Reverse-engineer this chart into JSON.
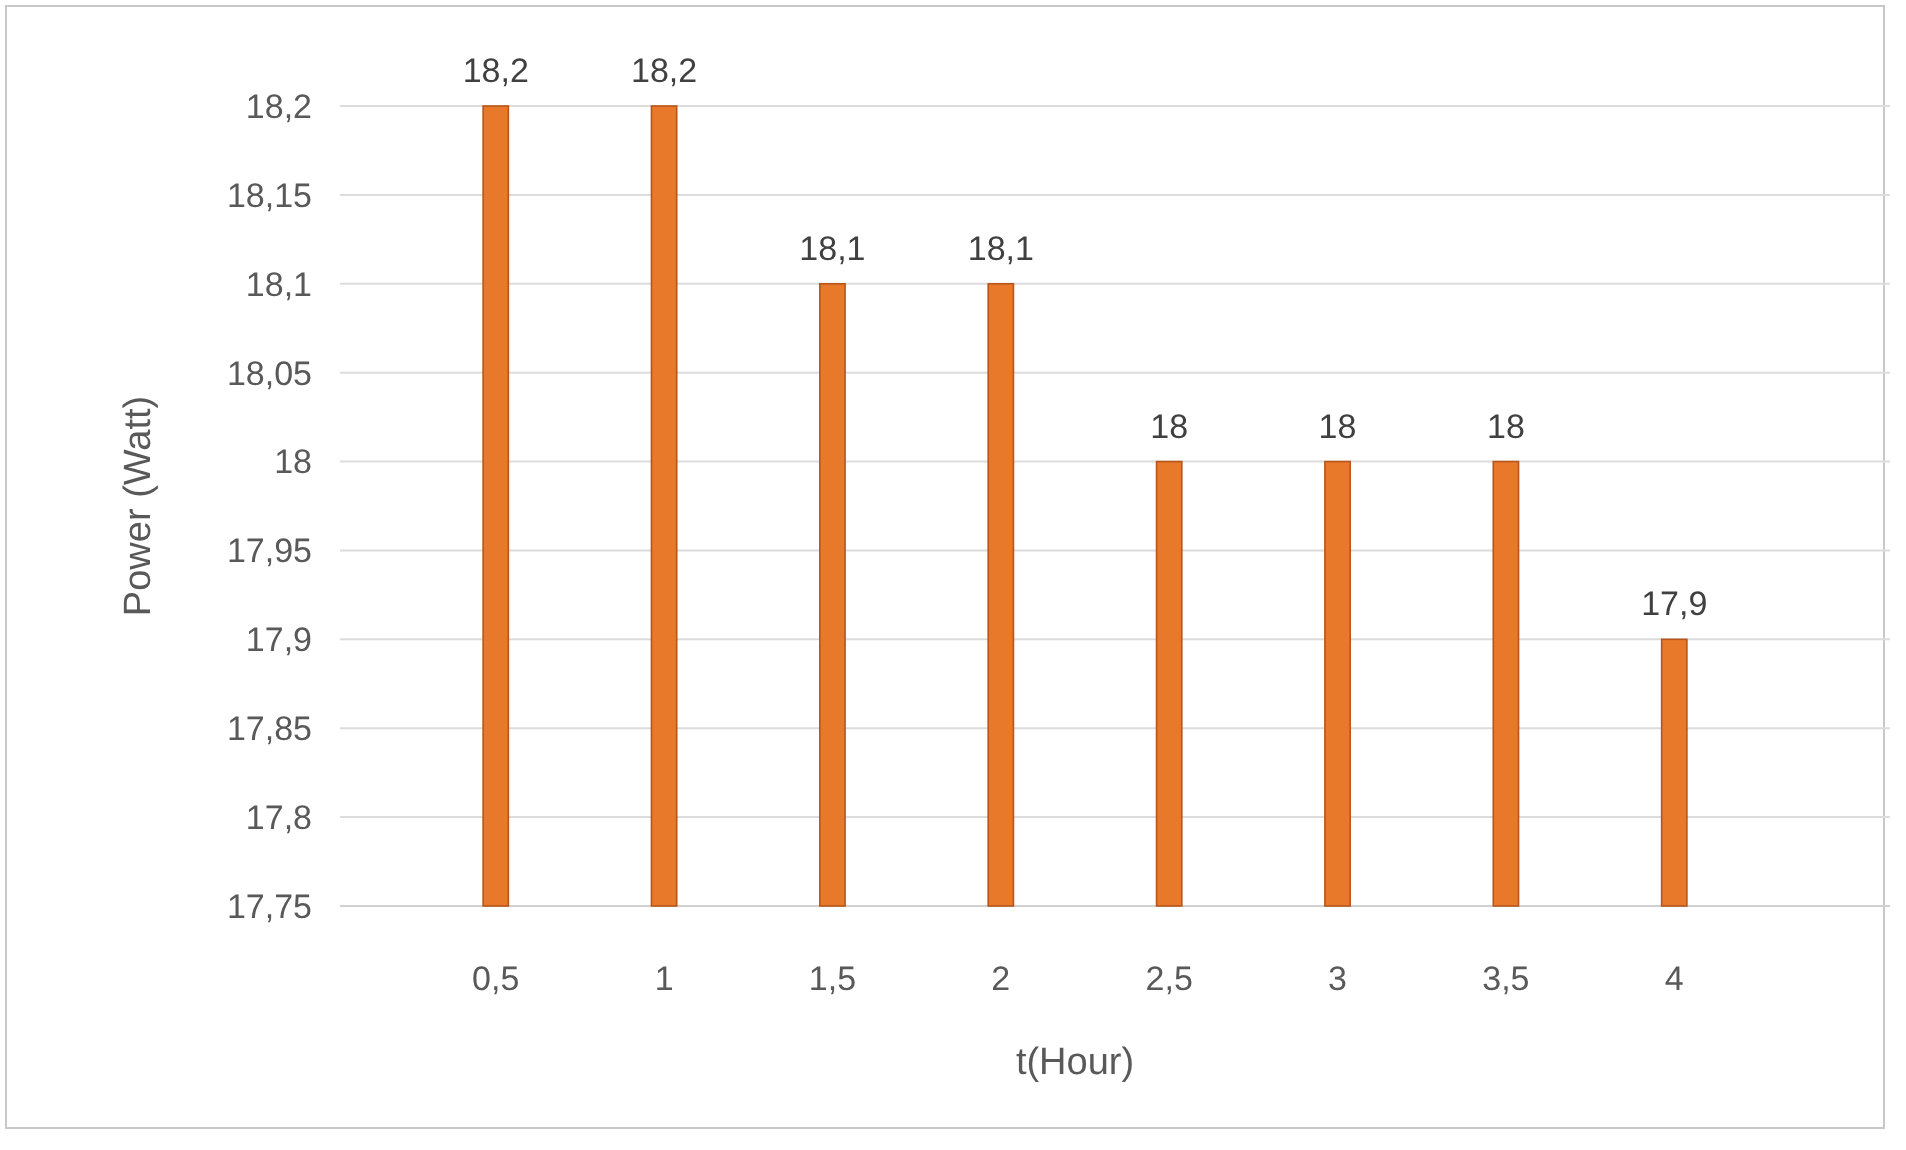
{
  "chart_data": {
    "type": "bar",
    "xlabel": "t(Hour)",
    "ylabel": "Power (Watt)",
    "categories": [
      "0,5",
      "1",
      "1,5",
      "2",
      "2,5",
      "3",
      "3,5",
      "4"
    ],
    "values": [
      18.2,
      18.2,
      18.1,
      18.1,
      18,
      18,
      18,
      17.9
    ],
    "value_labels": [
      "18,2",
      "18,2",
      "18,1",
      "18,1",
      "18",
      "18",
      "18",
      "17,9"
    ],
    "color": "#e8782a",
    "ylim": [
      17.75,
      18.2
    ],
    "yticks": [
      {
        "value": 17.75,
        "label": "17,75"
      },
      {
        "value": 17.8,
        "label": "17,8"
      },
      {
        "value": 17.85,
        "label": "17,85"
      },
      {
        "value": 17.9,
        "label": "17,9"
      },
      {
        "value": 17.95,
        "label": "17,95"
      },
      {
        "value": 18,
        "label": "18"
      },
      {
        "value": 18.05,
        "label": "18,05"
      },
      {
        "value": 18.1,
        "label": "18,1"
      },
      {
        "value": 18.15,
        "label": "18,15"
      },
      {
        "value": 18.2,
        "label": "18,2"
      }
    ],
    "grid": "y"
  }
}
